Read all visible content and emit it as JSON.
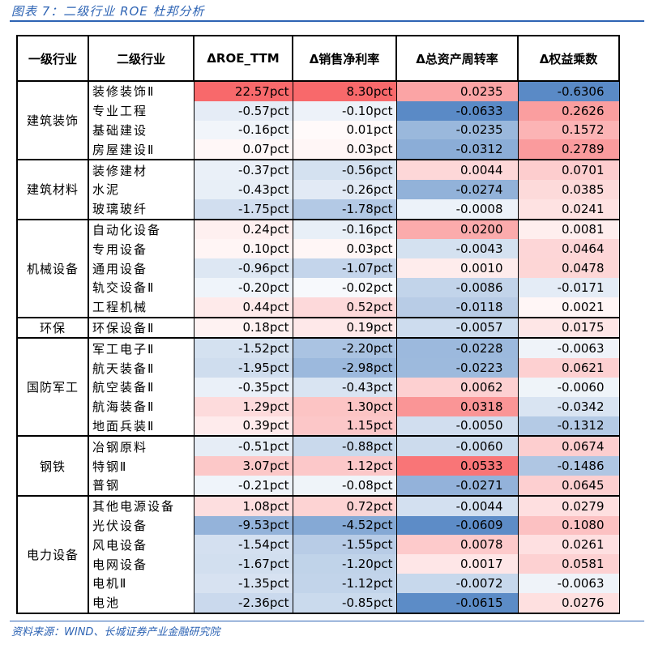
{
  "figure": {
    "title": "图表 7：二级行业 ROE 杜邦分析",
    "source": "资料来源：WIND、长城证券产业金融研究院"
  },
  "palette": {
    "positive": "#f8696b",
    "negative": "#5a8ac6",
    "neutral": "#ffffff",
    "accent": "#2e64b4"
  },
  "chart_data": {
    "type": "table",
    "columns": [
      "一级行业",
      "二级行业",
      "ΔROE_TTM",
      "Δ销售净利率",
      "Δ总资产周转率",
      "Δ权益乘数"
    ],
    "groups": [
      {
        "name": "建筑装饰",
        "rows": [
          {
            "name": "装修装饰Ⅱ",
            "values": [
              "22.57pct",
              "8.30pct",
              "0.0235",
              "-0.6306"
            ]
          },
          {
            "name": "专业工程",
            "values": [
              "-0.57pct",
              "-0.10pct",
              "-0.0633",
              "0.2626"
            ]
          },
          {
            "name": "基础建设",
            "values": [
              "-0.16pct",
              "0.01pct",
              "-0.0235",
              "0.1572"
            ]
          },
          {
            "name": "房屋建设Ⅱ",
            "values": [
              "0.07pct",
              "0.03pct",
              "-0.0312",
              "0.2789"
            ]
          }
        ]
      },
      {
        "name": "建筑材料",
        "rows": [
          {
            "name": "装修建材",
            "values": [
              "-0.37pct",
              "-0.56pct",
              "0.0044",
              "0.0701"
            ]
          },
          {
            "name": "水泥",
            "values": [
              "-0.43pct",
              "-0.26pct",
              "-0.0274",
              "0.0385"
            ]
          },
          {
            "name": "玻璃玻纤",
            "values": [
              "-1.75pct",
              "-1.78pct",
              "-0.0008",
              "0.0241"
            ]
          }
        ]
      },
      {
        "name": "机械设备",
        "rows": [
          {
            "name": "自动化设备",
            "values": [
              "0.24pct",
              "-0.16pct",
              "0.0200",
              "0.0081"
            ]
          },
          {
            "name": "专用设备",
            "values": [
              "0.10pct",
              "0.03pct",
              "-0.0043",
              "0.0464"
            ]
          },
          {
            "name": "通用设备",
            "values": [
              "-0.96pct",
              "-1.07pct",
              "0.0010",
              "0.0478"
            ]
          },
          {
            "name": "轨交设备Ⅱ",
            "values": [
              "-0.20pct",
              "-0.02pct",
              "-0.0086",
              "-0.0171"
            ]
          },
          {
            "name": "工程机械",
            "values": [
              "0.44pct",
              "0.52pct",
              "-0.0118",
              "0.0021"
            ]
          }
        ]
      },
      {
        "name": "环保",
        "rows": [
          {
            "name": "环保设备Ⅱ",
            "values": [
              "0.18pct",
              "0.19pct",
              "-0.0057",
              "0.0175"
            ]
          }
        ]
      },
      {
        "name": "国防军工",
        "rows": [
          {
            "name": "军工电子Ⅱ",
            "values": [
              "-1.52pct",
              "-2.20pct",
              "-0.0228",
              "-0.0063"
            ]
          },
          {
            "name": "航天装备Ⅱ",
            "values": [
              "-1.95pct",
              "-2.98pct",
              "-0.0223",
              "0.0621"
            ]
          },
          {
            "name": "航空装备Ⅱ",
            "values": [
              "-0.35pct",
              "-0.43pct",
              "0.0062",
              "-0.0060"
            ]
          },
          {
            "name": "航海装备Ⅱ",
            "values": [
              "1.29pct",
              "1.30pct",
              "0.0318",
              "-0.0342"
            ]
          },
          {
            "name": "地面兵装Ⅱ",
            "values": [
              "0.39pct",
              "1.15pct",
              "-0.0050",
              "-0.1312"
            ]
          }
        ]
      },
      {
        "name": "钢铁",
        "rows": [
          {
            "name": "冶钢原料",
            "values": [
              "-0.51pct",
              "-0.88pct",
              "-0.0060",
              "0.0674"
            ]
          },
          {
            "name": "特钢Ⅱ",
            "values": [
              "3.07pct",
              "1.12pct",
              "0.0533",
              "-0.1486"
            ]
          },
          {
            "name": "普钢",
            "values": [
              "-0.21pct",
              "-0.08pct",
              "-0.0271",
              "0.0645"
            ]
          }
        ]
      },
      {
        "name": "电力设备",
        "rows": [
          {
            "name": "其他电源设备",
            "values": [
              "1.08pct",
              "0.72pct",
              "-0.0044",
              "0.0279"
            ]
          },
          {
            "name": "光伏设备",
            "values": [
              "-9.53pct",
              "-4.52pct",
              "-0.0609",
              "0.1080"
            ]
          },
          {
            "name": "风电设备",
            "values": [
              "-1.54pct",
              "-1.55pct",
              "0.0078",
              "0.0261"
            ]
          },
          {
            "name": "电网设备",
            "values": [
              "-1.67pct",
              "-1.20pct",
              "0.0017",
              "0.0581"
            ]
          },
          {
            "name": "电机Ⅱ",
            "values": [
              "-1.35pct",
              "-1.12pct",
              "-0.0072",
              "-0.0063"
            ]
          },
          {
            "name": "电池",
            "values": [
              "-2.36pct",
              "-0.85pct",
              "-0.0615",
              "0.0276"
            ]
          }
        ]
      }
    ]
  }
}
